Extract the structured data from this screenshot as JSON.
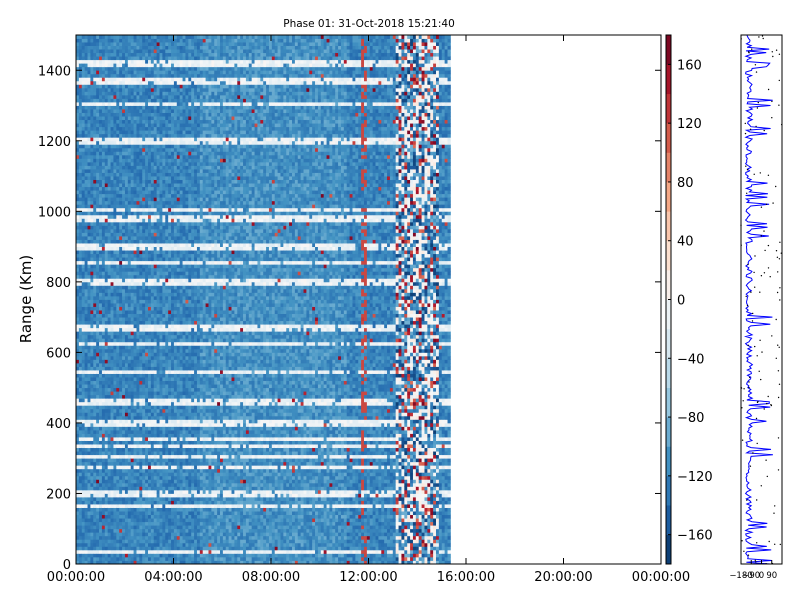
{
  "chart_data": [
    {
      "type": "heatmap",
      "title": "Phase 01: 31-Oct-2018 15:21:40",
      "xlabel": "",
      "ylabel": "Range (Km)",
      "x_tick_labels": [
        "00:00:00",
        "04:00:00",
        "08:00:00",
        "12:00:00",
        "16:00:00",
        "20:00:00",
        "00:00:00"
      ],
      "x_ticks_hours": [
        0,
        4,
        8,
        12,
        16,
        20,
        24
      ],
      "xlim_hours": [
        0,
        24
      ],
      "data_extent_hours": [
        0,
        15.36
      ],
      "y_ticks": [
        0,
        200,
        400,
        600,
        800,
        1000,
        1200,
        1400
      ],
      "ylim": [
        0,
        1500
      ],
      "colormap": "RdBu_r",
      "clim": [
        -180,
        180
      ],
      "colorbar_ticks": [
        160,
        120,
        80,
        40,
        0,
        -40,
        -80,
        -120,
        -160
      ],
      "colorbar_tick_labels": [
        "160",
        "120",
        "80",
        "40",
        "0",
        "−40",
        "−80",
        "−120",
        "−160"
      ],
      "dominant_value": -120,
      "bright_bands_km": [
        30,
        160,
        195,
        270,
        300,
        330,
        350,
        395,
        455,
        540,
        620,
        665,
        795,
        850,
        895,
        975,
        1000,
        1195,
        1300,
        1365,
        1415
      ],
      "noisy_column_hours": [
        13.0,
        14.8
      ],
      "faint_columns_hours": [
        11.7
      ]
    },
    {
      "type": "line",
      "title": "",
      "xlabel": "",
      "ylabel": "",
      "x_tick_labels": [
        "−180",
        "−90",
        "0",
        "90"
      ],
      "x_ticks": [
        -180,
        -90,
        0,
        90
      ],
      "xlim": [
        -180,
        180
      ],
      "ylim": [
        0,
        1500
      ],
      "color": "#0000ff"
    }
  ]
}
